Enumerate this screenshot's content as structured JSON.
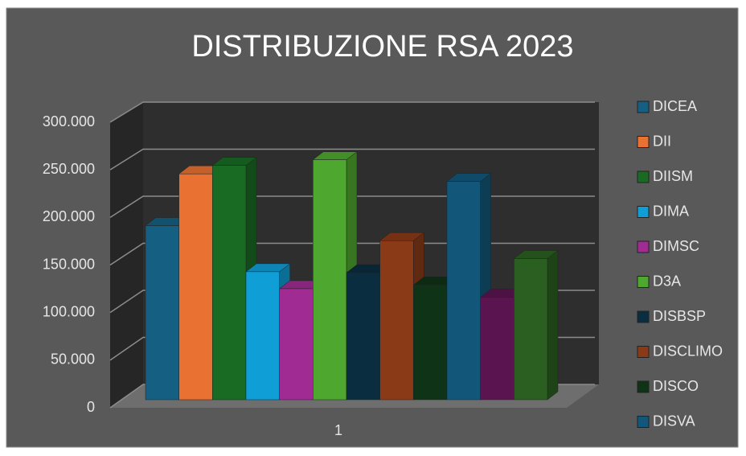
{
  "chart_data": {
    "type": "bar3d",
    "title": "DISTRIBUZIONE RSA 2023",
    "categories": [
      "1"
    ],
    "series": [
      {
        "name": "DICEA",
        "color": "#156082",
        "values": [
          185000
        ]
      },
      {
        "name": "DII",
        "color": "#e97132",
        "values": [
          240000
        ]
      },
      {
        "name": "DIISM",
        "color": "#196b24",
        "values": [
          249000
        ]
      },
      {
        "name": "DIMA",
        "color": "#0f9ed5",
        "values": [
          136000
        ]
      },
      {
        "name": "DIMSC",
        "color": "#a02b93",
        "values": [
          118000
        ]
      },
      {
        "name": "D3A",
        "color": "#4ea72e",
        "values": [
          255000
        ]
      },
      {
        "name": "DISBSP",
        "color": "#0a2d40",
        "values": [
          135000
        ]
      },
      {
        "name": "DISCLIMO",
        "color": "#8b3a17",
        "values": [
          169000
        ]
      },
      {
        "name": "DISCO",
        "color": "#0f3316",
        "values": [
          122000
        ]
      },
      {
        "name": "DISVA",
        "color": "#12577a",
        "values": [
          232000
        ]
      },
      {
        "name": null,
        "color": "#5a1550",
        "values": [
          109000
        ]
      },
      {
        "name": null,
        "color": "#2b5f21",
        "values": [
          150000
        ]
      }
    ],
    "ylim": [
      0,
      300000
    ],
    "yticks": [
      0,
      {
        "value": 50000,
        "label": "50.000"
      },
      {
        "value": 100000,
        "label": "100.000"
      },
      {
        "value": 150000,
        "label": "150.000"
      },
      {
        "value": 200000,
        "label": "200.000"
      },
      {
        "value": 250000,
        "label": "250.000"
      },
      {
        "value": 300000,
        "label": "300.000"
      }
    ],
    "grid": true,
    "legend": "right"
  }
}
